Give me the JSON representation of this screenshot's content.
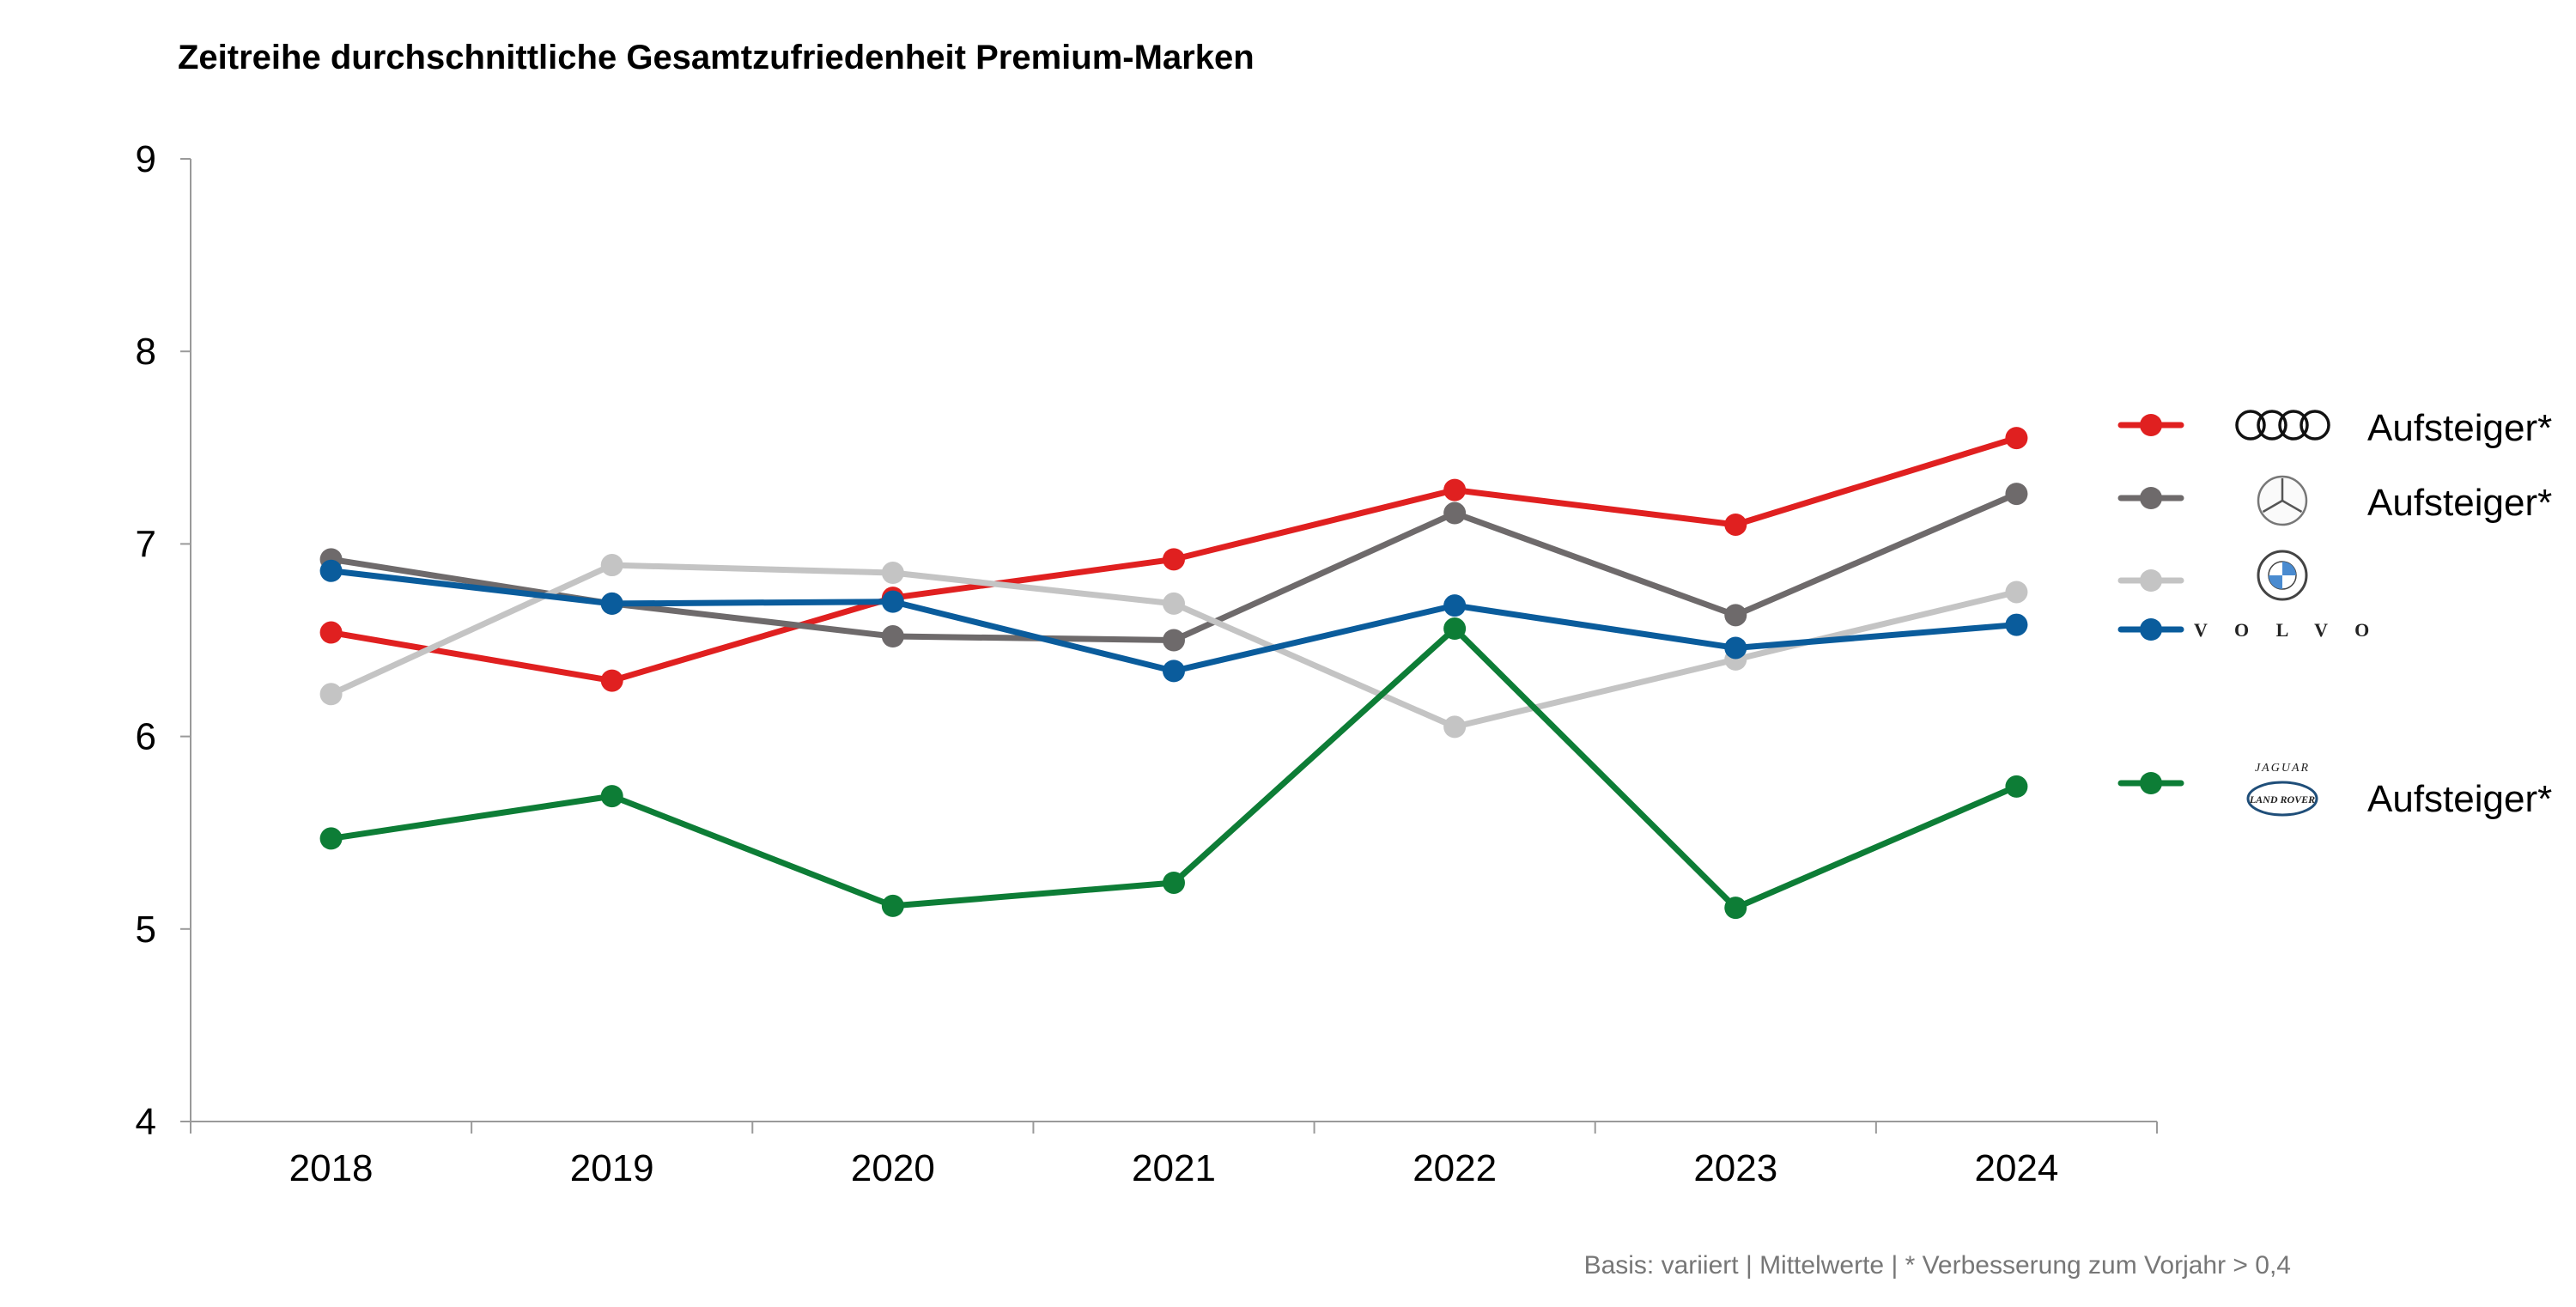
{
  "chart_data": {
    "type": "line",
    "title": "Zeitreihe durchschnittliche Gesamtzufriedenheit Premium-Marken",
    "x": [
      "2018",
      "2019",
      "2020",
      "2021",
      "2022",
      "2023",
      "2024"
    ],
    "yticks": [
      "4",
      "5",
      "6",
      "7",
      "8",
      "9"
    ],
    "ylim": [
      4,
      9
    ],
    "grid": false,
    "legend_position": "right",
    "series": [
      {
        "brand_icon": "audi-rings-logo",
        "label": "Aufsteiger*",
        "color": "#e02020",
        "values": [
          6.54,
          6.29,
          6.72,
          6.92,
          7.28,
          7.1,
          7.55
        ]
      },
      {
        "brand_icon": "mercedes-star-logo",
        "label": "Aufsteiger*",
        "color": "#6e6a6b",
        "values": [
          6.92,
          6.69,
          6.52,
          6.5,
          7.16,
          6.63,
          7.26
        ]
      },
      {
        "brand_icon": "bmw-roundel-logo",
        "label": "",
        "color": "#c4c4c4",
        "values": [
          6.22,
          6.89,
          6.85,
          6.69,
          6.05,
          6.4,
          6.75
        ]
      },
      {
        "brand_icon": "volvo-wordmark-logo",
        "label": "",
        "logo_text": "V O L V O",
        "color": "#0a5c9c",
        "values": [
          6.86,
          6.69,
          6.7,
          6.34,
          6.68,
          6.46,
          6.58
        ]
      },
      {
        "brand_icon": "jaguar-land-rover-logo",
        "label": "Aufsteiger*",
        "logo_text_top": "JAGUAR",
        "logo_text_oval": "LAND ROVER",
        "color": "#0d7d36",
        "values": [
          5.47,
          5.69,
          5.12,
          5.24,
          6.56,
          5.11,
          5.74
        ]
      }
    ],
    "footnote": "Basis: variiert | Mittelwerte | * Verbesserung zum Vorjahr > 0,4"
  }
}
